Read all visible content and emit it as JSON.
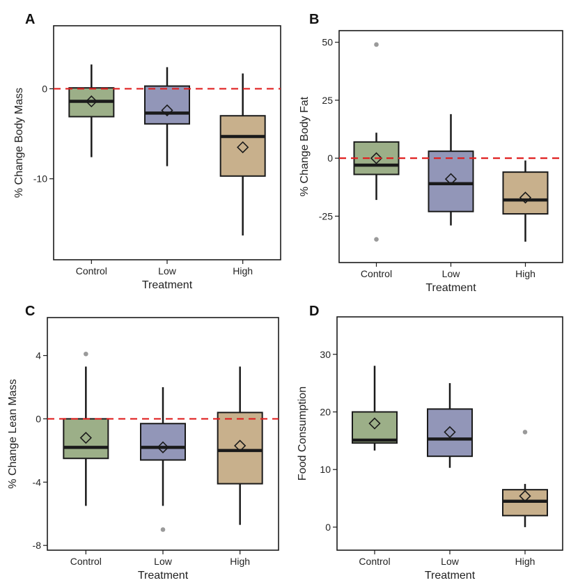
{
  "colors": {
    "Control": "#9caf88",
    "Low": "#9296b8",
    "High": "#c8b08c",
    "outline": "#1a1a1a",
    "reference_line": "#e02020",
    "outlier": "#9a9a9a"
  },
  "chart_data": [
    {
      "panel": "A",
      "type": "box",
      "xlabel": "Treatment",
      "ylabel": "% Change Body Mass",
      "categories": [
        "Control",
        "Low",
        "High"
      ],
      "yticks": [
        0,
        -10
      ],
      "ylim": [
        -19,
        7
      ],
      "reference_line": 0,
      "boxes": [
        {
          "category": "Control",
          "whisker_low": -7.6,
          "q1": -3.1,
          "median": -1.4,
          "q3": 0.1,
          "whisker_high": 2.7,
          "mean": -1.4,
          "outliers": []
        },
        {
          "category": "Low",
          "whisker_low": -8.6,
          "q1": -3.9,
          "median": -2.7,
          "q3": 0.3,
          "whisker_high": 2.4,
          "mean": -2.4,
          "outliers": []
        },
        {
          "category": "High",
          "whisker_low": -16.3,
          "q1": -9.7,
          "median": -5.3,
          "q3": -3.0,
          "whisker_high": 1.7,
          "mean": -6.5,
          "outliers": []
        }
      ]
    },
    {
      "panel": "B",
      "type": "box",
      "xlabel": "Treatment",
      "ylabel": "% Change Body Fat",
      "categories": [
        "Control",
        "Low",
        "High"
      ],
      "yticks": [
        50,
        25,
        0,
        -25
      ],
      "ylim": [
        -45,
        55
      ],
      "reference_line": 0,
      "boxes": [
        {
          "category": "Control",
          "whisker_low": -18,
          "q1": -7,
          "median": -3,
          "q3": 7,
          "whisker_high": 11,
          "mean": 0,
          "outliers": [
            49,
            -35
          ]
        },
        {
          "category": "Low",
          "whisker_low": -29,
          "q1": -23,
          "median": -11,
          "q3": 3,
          "whisker_high": 19,
          "mean": -9,
          "outliers": []
        },
        {
          "category": "High",
          "whisker_low": -36,
          "q1": -24,
          "median": -18,
          "q3": -6,
          "whisker_high": -1,
          "mean": -17,
          "outliers": []
        }
      ]
    },
    {
      "panel": "C",
      "type": "box",
      "xlabel": "Treatment",
      "ylabel": "% Change Lean Mass",
      "categories": [
        "Control",
        "Low",
        "High"
      ],
      "yticks": [
        4,
        0,
        -4,
        -8
      ],
      "ylim": [
        -8.3,
        6.4
      ],
      "reference_line": 0,
      "boxes": [
        {
          "category": "Control",
          "whisker_low": -5.5,
          "q1": -2.5,
          "median": -1.8,
          "q3": 0.0,
          "whisker_high": 3.3,
          "mean": -1.2,
          "outliers": [
            4.1
          ]
        },
        {
          "category": "Low",
          "whisker_low": -5.5,
          "q1": -2.6,
          "median": -1.8,
          "q3": -0.3,
          "whisker_high": 2.0,
          "mean": -1.8,
          "outliers": [
            -7.0
          ]
        },
        {
          "category": "High",
          "whisker_low": -6.7,
          "q1": -4.1,
          "median": -2.0,
          "q3": 0.4,
          "whisker_high": 3.3,
          "mean": -1.7,
          "outliers": []
        }
      ]
    },
    {
      "panel": "D",
      "type": "box",
      "xlabel": "Treatment",
      "ylabel": "Food Consumption",
      "categories": [
        "Control",
        "Low",
        "High"
      ],
      "yticks": [
        30,
        20,
        10,
        0
      ],
      "ylim": [
        -4,
        36.5
      ],
      "reference_line": null,
      "boxes": [
        {
          "category": "Control",
          "whisker_low": 13.3,
          "q1": 14.6,
          "median": 15.1,
          "q3": 20.0,
          "whisker_high": 28.0,
          "mean": 18.0,
          "outliers": []
        },
        {
          "category": "Low",
          "whisker_low": 10.3,
          "q1": 12.3,
          "median": 15.3,
          "q3": 20.5,
          "whisker_high": 25.0,
          "mean": 16.5,
          "outliers": []
        },
        {
          "category": "High",
          "whisker_low": 0.0,
          "q1": 2.0,
          "median": 4.5,
          "q3": 6.5,
          "whisker_high": 7.5,
          "mean": 5.4,
          "outliers": [
            16.5
          ]
        }
      ]
    }
  ]
}
